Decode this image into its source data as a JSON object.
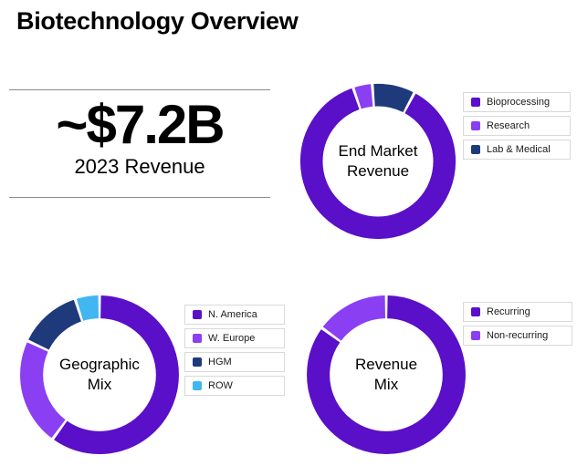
{
  "page": {
    "title": "Biotechnology Overview"
  },
  "stat": {
    "value": "~$7.2B",
    "label": "2023 Revenue"
  },
  "palette": {
    "purple": "#5a0fc8",
    "violet": "#8a3ff2",
    "navy": "#1f3a7a",
    "cyan": "#41b6f0"
  },
  "chart_data": [
    {
      "type": "pie",
      "title": "End Market\nRevenue",
      "labels": [
        "Bioprocessing",
        "Research",
        "Lab & Medical"
      ],
      "values": [
        87,
        4,
        9
      ],
      "colors": [
        "#5a0fc8",
        "#8a3ff2",
        "#1f3a7a"
      ],
      "rotate": 28,
      "legend_position": "right"
    },
    {
      "type": "pie",
      "title": "Geographic\nMix",
      "labels": [
        "N. America",
        "W. Europe",
        "HGM",
        "ROW"
      ],
      "values": [
        60,
        22,
        13,
        5
      ],
      "colors": [
        "#5a0fc8",
        "#8a3ff2",
        "#1f3a7a",
        "#41b6f0"
      ],
      "rotate": 0,
      "legend_position": "right"
    },
    {
      "type": "pie",
      "title": "Revenue\nMix",
      "labels": [
        "Recurring",
        "Non-recurring"
      ],
      "values": [
        85,
        15
      ],
      "colors": [
        "#5a0fc8",
        "#8a3ff2"
      ],
      "rotate": 0,
      "legend_position": "right"
    }
  ]
}
